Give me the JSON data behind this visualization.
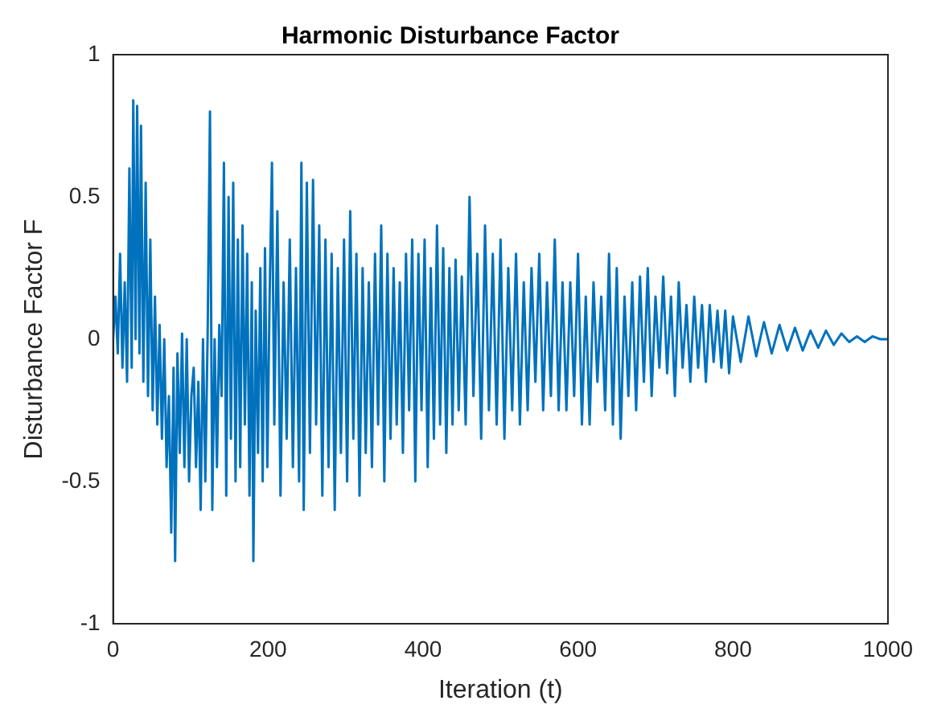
{
  "chart_data": {
    "type": "line",
    "title": "Harmonic Disturbance Factor",
    "xlabel": "Iteration (t)",
    "ylabel": "Disturbance Factor F",
    "xlim": [
      0,
      1000
    ],
    "xticks": [
      0,
      200,
      400,
      600,
      800,
      1000
    ],
    "ylim": [
      -1,
      1
    ],
    "yticks": [
      -1,
      -0.5,
      0,
      0.5,
      1
    ],
    "grid": false,
    "legend": false,
    "marker": "none",
    "line_style": "solid",
    "series": [
      {
        "color": "#0072bd",
        "x": [
          0,
          3,
          6,
          9,
          12,
          15,
          18,
          21,
          24,
          26,
          29,
          31,
          34,
          36,
          39,
          42,
          45,
          48,
          51,
          54,
          57,
          60,
          63,
          66,
          69,
          72,
          75,
          78,
          80,
          83,
          86,
          89,
          92,
          95,
          98,
          101,
          104,
          107,
          110,
          113,
          116,
          119,
          122,
          125,
          128,
          131,
          134,
          137,
          140,
          143,
          146,
          149,
          152,
          155,
          158,
          161,
          164,
          167,
          170,
          173,
          176,
          179,
          181,
          184,
          187,
          190,
          193,
          196,
          199,
          202,
          205,
          208,
          212,
          216,
          220,
          224,
          228,
          232,
          236,
          240,
          243,
          246,
          250,
          254,
          258,
          262,
          266,
          270,
          274,
          278,
          282,
          286,
          290,
          294,
          298,
          302,
          306,
          310,
          314,
          318,
          322,
          326,
          330,
          334,
          338,
          342,
          346,
          350,
          354,
          358,
          362,
          366,
          370,
          374,
          378,
          382,
          386,
          390,
          394,
          398,
          402,
          406,
          410,
          414,
          418,
          422,
          426,
          430,
          434,
          438,
          442,
          446,
          450,
          455,
          460,
          465,
          470,
          475,
          480,
          485,
          490,
          495,
          500,
          505,
          510,
          515,
          520,
          525,
          530,
          535,
          540,
          545,
          550,
          555,
          560,
          565,
          570,
          575,
          580,
          585,
          590,
          595,
          600,
          605,
          610,
          615,
          620,
          625,
          630,
          635,
          640,
          645,
          650,
          655,
          660,
          665,
          670,
          675,
          680,
          685,
          690,
          695,
          700,
          705,
          710,
          715,
          720,
          725,
          730,
          735,
          740,
          745,
          750,
          755,
          760,
          765,
          770,
          775,
          780,
          785,
          790,
          795,
          800,
          810,
          820,
          830,
          840,
          850,
          860,
          870,
          880,
          890,
          900,
          910,
          920,
          930,
          940,
          950,
          960,
          970,
          980,
          990,
          1000
        ],
        "values": [
          0,
          0.15,
          -0.05,
          0.3,
          -0.1,
          0.2,
          -0.15,
          0.6,
          -0.1,
          0.84,
          0,
          0.82,
          -0.05,
          0.75,
          -0.15,
          0.55,
          -0.2,
          0.35,
          -0.25,
          0.15,
          -0.3,
          0.05,
          -0.35,
          0,
          -0.45,
          -0.2,
          -0.68,
          -0.1,
          -0.78,
          -0.05,
          -0.4,
          0.02,
          -0.45,
          0,
          -0.5,
          -0.2,
          -0.1,
          -0.45,
          -0.15,
          -0.6,
          0,
          -0.5,
          0.02,
          0.8,
          -0.6,
          0,
          -0.45,
          0.05,
          -0.2,
          0.62,
          -0.55,
          0.5,
          -0.35,
          0.55,
          -0.5,
          0.35,
          -0.45,
          0.4,
          -0.3,
          0.3,
          -0.55,
          0.2,
          -0.78,
          0.1,
          -0.4,
          0.25,
          -0.5,
          0.32,
          -0.45,
          0.15,
          0.62,
          -0.3,
          0.45,
          -0.55,
          0.2,
          -0.35,
          0.35,
          -0.45,
          0.25,
          -0.5,
          0.62,
          -0.6,
          0.55,
          -0.4,
          0.56,
          -0.3,
          0.4,
          -0.55,
          0.35,
          -0.45,
          0.3,
          -0.6,
          0.25,
          -0.4,
          0.35,
          -0.5,
          0.45,
          -0.35,
          0.3,
          -0.55,
          0.25,
          -0.4,
          0.2,
          -0.45,
          0.3,
          -0.3,
          0.4,
          -0.5,
          0.3,
          -0.35,
          0.25,
          -0.3,
          0.2,
          -0.4,
          0.3,
          -0.25,
          0.35,
          -0.5,
          0.3,
          -0.25,
          0.35,
          -0.45,
          0.25,
          -0.35,
          0.4,
          -0.3,
          0.32,
          -0.4,
          0.25,
          -0.3,
          0.28,
          -0.25,
          0.22,
          -0.3,
          0.5,
          -0.2,
          0.3,
          -0.35,
          0.4,
          -0.25,
          0.3,
          -0.3,
          0.35,
          -0.35,
          0.25,
          -0.25,
          0.3,
          -0.3,
          0.2,
          -0.25,
          0.25,
          -0.15,
          0.3,
          -0.25,
          0.2,
          -0.2,
          0.35,
          -0.25,
          0.2,
          -0.25,
          0.2,
          -0.2,
          0.3,
          -0.3,
          0.15,
          -0.3,
          0.2,
          -0.15,
          0.15,
          -0.25,
          0.3,
          -0.3,
          0.25,
          -0.35,
          0.15,
          -0.2,
          0.2,
          -0.25,
          0.22,
          -0.15,
          0.25,
          -0.2,
          0.15,
          -0.1,
          0.22,
          -0.12,
          0.15,
          -0.2,
          0.2,
          -0.1,
          0.12,
          -0.15,
          0.15,
          -0.1,
          0.12,
          -0.15,
          0.12,
          -0.08,
          0.1,
          -0.1,
          0.1,
          -0.12,
          0.08,
          -0.08,
          0.08,
          -0.06,
          0.06,
          -0.05,
          0.05,
          -0.04,
          0.04,
          -0.04,
          0.03,
          -0.03,
          0.03,
          -0.02,
          0.02,
          -0.01,
          0.01,
          -0.01,
          0.01,
          0,
          0
        ]
      }
    ]
  }
}
